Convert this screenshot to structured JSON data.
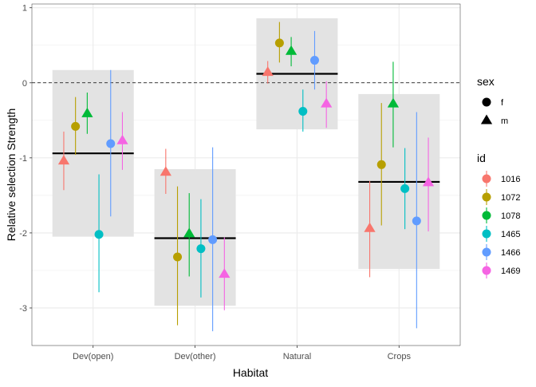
{
  "chart_data": {
    "type": "scatter",
    "title": "",
    "xlabel": "Habitat",
    "ylabel": "Relative selection Strength",
    "categories": [
      "Dev(open)",
      "Dev(other)",
      "Natural",
      "Crops"
    ],
    "ylim": [
      -3.5,
      1.05
    ],
    "yticks": [
      1,
      0,
      -1,
      -2,
      -3
    ],
    "ytick_labels": [
      "1",
      "0",
      "-1",
      "-2",
      "-3"
    ],
    "reference_line": 0,
    "grid": true,
    "legend_placement": "right",
    "legend_sex": {
      "title": "sex",
      "items": [
        {
          "label": "f",
          "shape": "circle"
        },
        {
          "label": "m",
          "shape": "triangle"
        }
      ]
    },
    "legend_id": {
      "title": "id",
      "items": [
        {
          "label": "1016",
          "color": "#F8766D"
        },
        {
          "label": "1072",
          "color": "#B79F00"
        },
        {
          "label": "1078",
          "color": "#00BA38"
        },
        {
          "label": "1465",
          "color": "#00BFC4"
        },
        {
          "label": "1466",
          "color": "#619CFF"
        },
        {
          "label": "1469",
          "color": "#F564E3"
        }
      ]
    },
    "group_summary": [
      {
        "habitat": "Dev(open)",
        "mean": -0.94,
        "lower": -2.05,
        "upper": 0.17
      },
      {
        "habitat": "Dev(other)",
        "mean": -2.07,
        "lower": -2.97,
        "upper": -1.15
      },
      {
        "habitat": "Natural",
        "mean": 0.12,
        "lower": -0.62,
        "upper": 0.86
      },
      {
        "habitat": "Crops",
        "mean": -1.32,
        "lower": -2.48,
        "upper": -0.15
      }
    ],
    "series": [
      {
        "name": "1016",
        "sex": "m",
        "points": [
          {
            "habitat": "Dev(open)",
            "y": -1.04,
            "lower": -1.43,
            "upper": -0.65
          },
          {
            "habitat": "Dev(other)",
            "y": -1.19,
            "lower": -1.48,
            "upper": -0.88
          },
          {
            "habitat": "Natural",
            "y": 0.14,
            "lower": -0.01,
            "upper": 0.29
          },
          {
            "habitat": "Crops",
            "y": -1.94,
            "lower": -2.59,
            "upper": -1.31
          }
        ]
      },
      {
        "name": "1072",
        "sex": "f",
        "points": [
          {
            "habitat": "Dev(open)",
            "y": -0.58,
            "lower": -0.96,
            "upper": -0.19
          },
          {
            "habitat": "Dev(other)",
            "y": -2.32,
            "lower": -3.23,
            "upper": -1.38
          },
          {
            "habitat": "Natural",
            "y": 0.53,
            "lower": 0.27,
            "upper": 0.81
          },
          {
            "habitat": "Crops",
            "y": -1.09,
            "lower": -1.9,
            "upper": -0.27
          }
        ]
      },
      {
        "name": "1078",
        "sex": "m",
        "points": [
          {
            "habitat": "Dev(open)",
            "y": -0.41,
            "lower": -0.68,
            "upper": -0.13
          },
          {
            "habitat": "Dev(other)",
            "y": -2.01,
            "lower": -2.58,
            "upper": -1.47
          },
          {
            "habitat": "Natural",
            "y": 0.42,
            "lower": 0.22,
            "upper": 0.61
          },
          {
            "habitat": "Crops",
            "y": -0.28,
            "lower": -0.86,
            "upper": 0.28
          }
        ]
      },
      {
        "name": "1465",
        "sex": "f",
        "points": [
          {
            "habitat": "Dev(open)",
            "y": -2.02,
            "lower": -2.79,
            "upper": -1.22
          },
          {
            "habitat": "Dev(other)",
            "y": -2.21,
            "lower": -2.86,
            "upper": -1.55
          },
          {
            "habitat": "Natural",
            "y": -0.38,
            "lower": -0.65,
            "upper": -0.09
          },
          {
            "habitat": "Crops",
            "y": -1.41,
            "lower": -1.95,
            "upper": -0.87
          }
        ]
      },
      {
        "name": "1466",
        "sex": "f",
        "points": [
          {
            "habitat": "Dev(open)",
            "y": -0.81,
            "lower": -1.78,
            "upper": 0.17
          },
          {
            "habitat": "Dev(other)",
            "y": -2.09,
            "lower": -3.31,
            "upper": -0.86
          },
          {
            "habitat": "Natural",
            "y": 0.3,
            "lower": -0.09,
            "upper": 0.69
          },
          {
            "habitat": "Crops",
            "y": -1.84,
            "lower": -3.27,
            "upper": -0.39
          }
        ]
      },
      {
        "name": "1469",
        "sex": "m",
        "points": [
          {
            "habitat": "Dev(open)",
            "y": -0.77,
            "lower": -1.16,
            "upper": -0.39
          },
          {
            "habitat": "Dev(other)",
            "y": -2.55,
            "lower": -3.03,
            "upper": -2.06
          },
          {
            "habitat": "Natural",
            "y": -0.28,
            "lower": -0.6,
            "upper": 0.02
          },
          {
            "habitat": "Crops",
            "y": -1.33,
            "lower": -1.98,
            "upper": -0.73
          }
        ]
      }
    ]
  }
}
